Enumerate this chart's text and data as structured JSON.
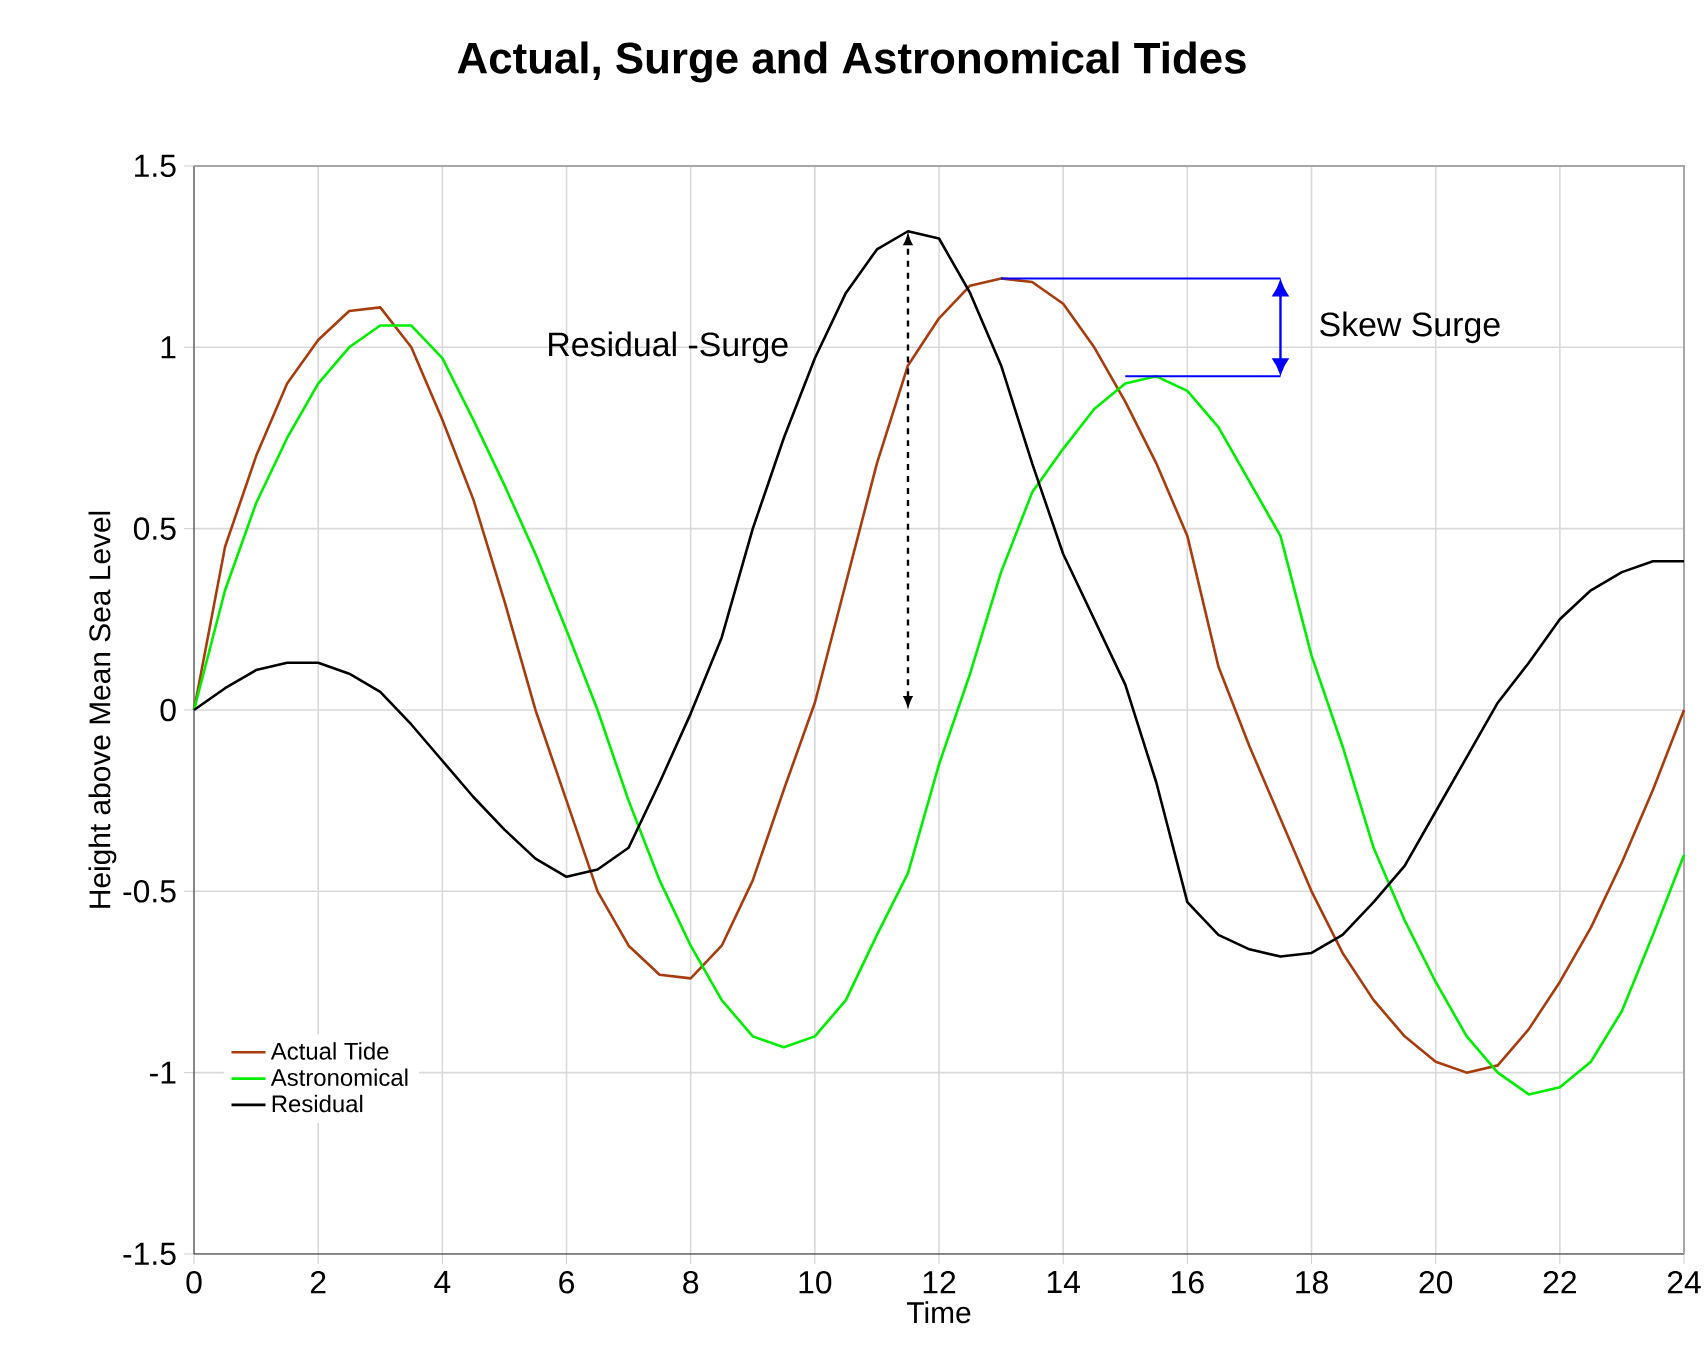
{
  "chart_data": {
    "type": "line",
    "title": "Actual, Surge and Astronomical Tides",
    "xlabel": "Time",
    "ylabel": "Height above Mean Sea Level",
    "x": [
      0,
      0.5,
      1,
      1.5,
      2,
      2.5,
      3,
      3.5,
      4,
      4.5,
      5,
      5.5,
      6,
      6.5,
      7,
      7.5,
      8,
      8.5,
      9,
      9.5,
      10,
      10.5,
      11,
      11.5,
      12,
      12.5,
      13,
      13.5,
      14,
      14.5,
      15,
      15.5,
      16,
      16.5,
      17,
      17.5,
      18,
      18.5,
      19,
      19.5,
      20,
      20.5,
      21,
      21.5,
      22,
      22.5,
      23,
      23.5,
      24
    ],
    "series": [
      {
        "name": "Actual Tide",
        "color": "#a83c0c",
        "values": [
          0,
          0.45,
          0.7,
          0.9,
          1.02,
          1.1,
          1.11,
          1.0,
          0.8,
          0.58,
          0.3,
          0.0,
          -0.25,
          -0.5,
          -0.65,
          -0.73,
          -0.74,
          -0.65,
          -0.47,
          -0.22,
          0.02,
          0.35,
          0.68,
          0.95,
          1.08,
          1.17,
          1.19,
          1.18,
          1.12,
          1.0,
          0.85,
          0.68,
          0.48,
          0.12,
          -0.1,
          -0.3,
          -0.5,
          -0.67,
          -0.8,
          -0.9,
          -0.97,
          -1.0,
          -0.98,
          -0.88,
          -0.75,
          -0.6,
          -0.42,
          -0.22,
          0
        ]
      },
      {
        "name": "Astronomical",
        "color": "#00ee00",
        "values": [
          0,
          0.33,
          0.57,
          0.75,
          0.9,
          1.0,
          1.06,
          1.06,
          0.97,
          0.8,
          0.62,
          0.43,
          0.22,
          0.0,
          -0.25,
          -0.47,
          -0.65,
          -0.8,
          -0.9,
          -0.93,
          -0.9,
          -0.8,
          -0.62,
          -0.45,
          -0.15,
          0.1,
          0.38,
          0.6,
          0.72,
          0.83,
          0.9,
          0.92,
          0.88,
          0.78,
          0.63,
          0.48,
          0.15,
          -0.1,
          -0.38,
          -0.58,
          -0.75,
          -0.9,
          -1.0,
          -1.06,
          -1.04,
          -0.97,
          -0.83,
          -0.62,
          -0.4
        ]
      },
      {
        "name": "Residual",
        "color": "#000000",
        "values": [
          0,
          0.06,
          0.11,
          0.13,
          0.13,
          0.1,
          0.05,
          -0.04,
          -0.14,
          -0.24,
          -0.33,
          -0.41,
          -0.46,
          -0.44,
          -0.38,
          -0.2,
          -0.01,
          0.2,
          0.5,
          0.75,
          0.97,
          1.15,
          1.27,
          1.32,
          1.3,
          1.15,
          0.95,
          0.68,
          0.43,
          0.25,
          0.07,
          -0.2,
          -0.53,
          -0.62,
          -0.66,
          -0.68,
          -0.67,
          -0.62,
          -0.53,
          -0.43,
          -0.28,
          -0.13,
          0.02,
          0.13,
          0.25,
          0.33,
          0.38,
          0.41,
          0.41
        ]
      }
    ],
    "annotations": [
      "Residual -Surge",
      "Skew Surge"
    ],
    "xlim": [
      0,
      24
    ],
    "xticks": [
      0,
      2,
      4,
      6,
      8,
      10,
      12,
      14,
      16,
      18,
      20,
      22,
      24
    ],
    "ylim": [
      -1.5,
      1.5
    ],
    "yticks": [
      -1.5,
      -1,
      -0.5,
      0,
      0.5,
      1,
      1.5
    ],
    "grid": true,
    "legend": "bottom left",
    "marker": "none",
    "line_style": "solid"
  }
}
